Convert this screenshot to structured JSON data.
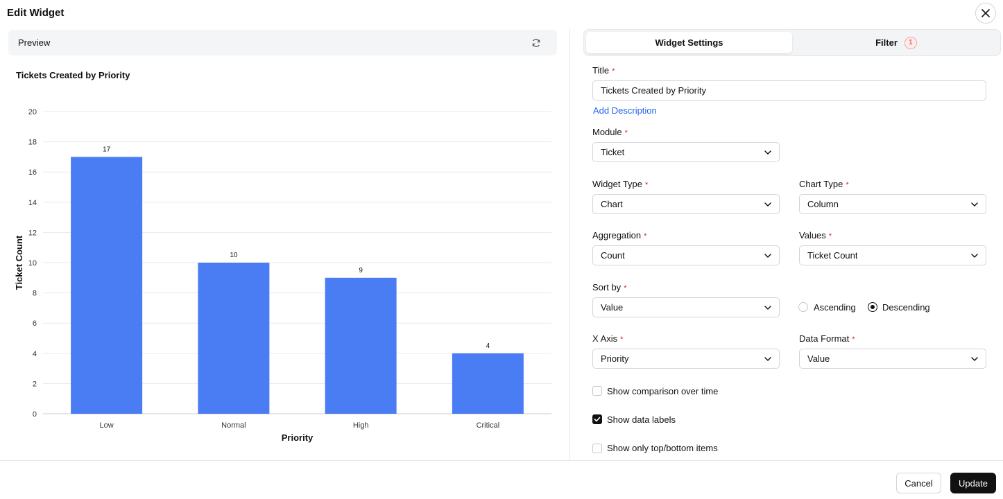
{
  "dialog": {
    "title": "Edit Widget"
  },
  "preview": {
    "label": "Preview"
  },
  "tabs": {
    "settings": "Widget Settings",
    "filter": "Filter",
    "filter_badge": "1"
  },
  "form": {
    "title_label": "Title",
    "title_value": "Tickets Created by Priority",
    "add_description": "Add Description",
    "module_label": "Module",
    "module_value": "Ticket",
    "widget_type_label": "Widget Type",
    "widget_type_value": "Chart",
    "chart_type_label": "Chart Type",
    "chart_type_value": "Column",
    "aggregation_label": "Aggregation",
    "aggregation_value": "Count",
    "values_label": "Values",
    "values_value": "Ticket Count",
    "sort_by_label": "Sort by",
    "sort_by_value": "Value",
    "ascending": "Ascending",
    "descending": "Descending",
    "x_axis_label": "X Axis",
    "x_axis_value": "Priority",
    "data_format_label": "Data Format",
    "data_format_value": "Value",
    "show_comparison": "Show comparison over time",
    "show_data_labels": "Show data labels",
    "show_top_bottom": "Show only top/bottom items",
    "required_mark": "*"
  },
  "footer": {
    "cancel": "Cancel",
    "update": "Update"
  },
  "colors": {
    "bar": "#4a7cf4",
    "accent_link": "#2563eb",
    "primary_button": "#111111"
  },
  "chart_data": {
    "type": "bar",
    "title": "Tickets Created by Priority",
    "categories": [
      "Low",
      "Normal",
      "High",
      "Critical"
    ],
    "values": [
      17,
      10,
      9,
      4
    ],
    "xlabel": "Priority",
    "ylabel": "Ticket Count",
    "ylim": [
      0,
      20
    ],
    "yticks": [
      0,
      2,
      4,
      6,
      8,
      10,
      12,
      14,
      16,
      18,
      20
    ],
    "grid": true,
    "data_labels": true
  }
}
